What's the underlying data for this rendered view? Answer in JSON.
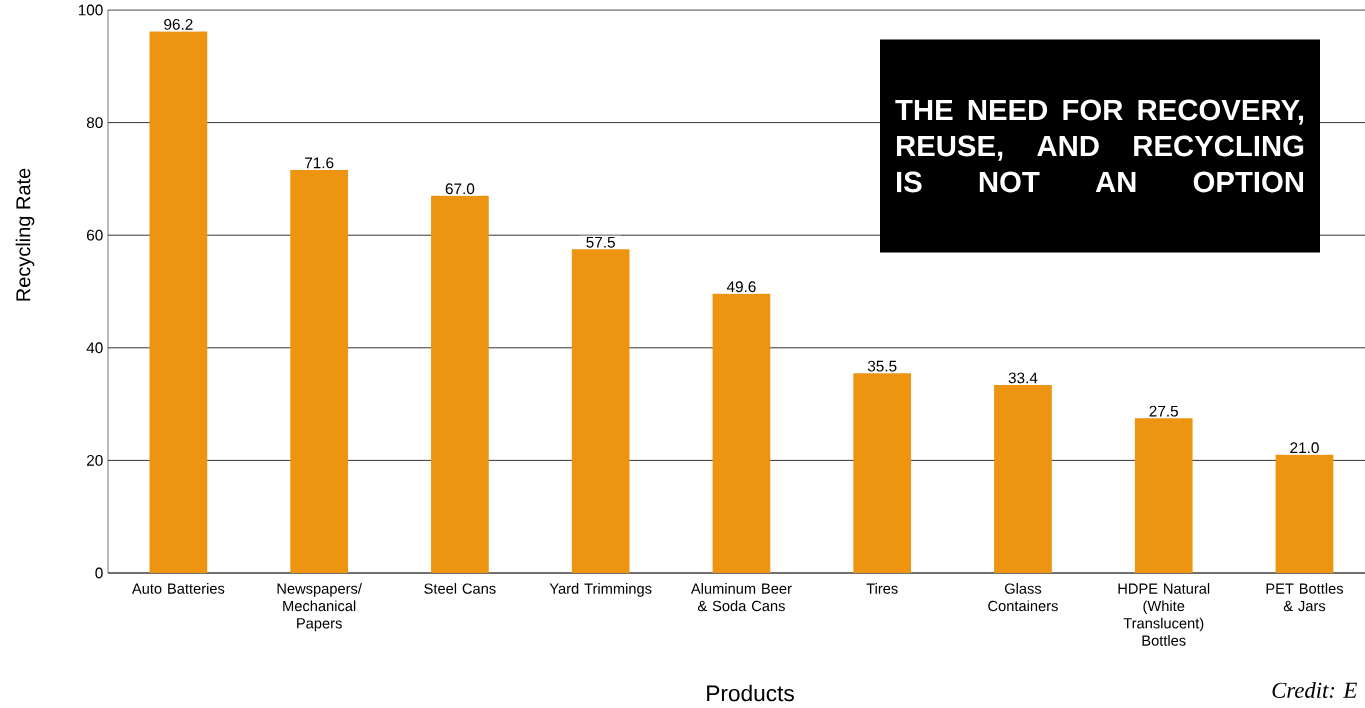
{
  "chart_data": {
    "type": "bar",
    "xlabel": "Products",
    "ylabel": "Recycling Rate",
    "categories": [
      "Auto Batteries",
      "Newspapers/ Mechanical Papers",
      "Steel Cans",
      "Yard Trimmings",
      "Aluminum Beer & Soda Cans",
      "Tires",
      "Glass Containers",
      "HDPE Natural (White Translucent) Bottles",
      "PET Bottles & Jars"
    ],
    "values": [
      96.2,
      71.6,
      67.0,
      57.5,
      49.6,
      35.5,
      33.4,
      27.5,
      21.0
    ],
    "value_labels": [
      "96.2",
      "71.6",
      "67.0",
      "57.5",
      "49.6",
      "35.5",
      "33.4",
      "27.5",
      "21.0"
    ],
    "color": "#ed9510",
    "ylim": [
      0,
      100
    ],
    "yticks": [
      0,
      20,
      40,
      60,
      80,
      100
    ],
    "grid": "y",
    "annotations": [
      "THE NEED FOR RECOVERY, REUSE, AND RECYCLING IS NOT AN OPTION",
      "Credit: E"
    ]
  }
}
